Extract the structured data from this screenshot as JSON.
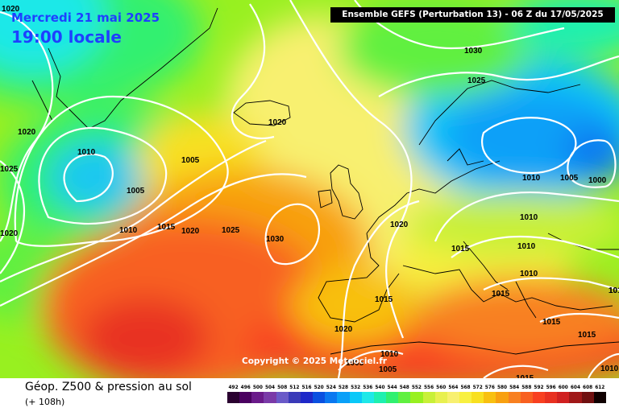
{
  "header": {
    "date": "Mercredi 21 mai 2025",
    "local_time": "19:00 locale",
    "model": "Ensemble GEFS  (Perturbation 13)  -  06 Z du 17/05/2025"
  },
  "copyright": "Copyright © 2025 Meteociel.fr",
  "footer": {
    "title": "Géop. Z500 & pression au sol",
    "subtitle": "(+ 108h)"
  },
  "isobar_labels": [
    {
      "text": "1020"
    },
    {
      "text": "1020"
    },
    {
      "text": "1025"
    },
    {
      "text": "1020"
    },
    {
      "text": "1010"
    },
    {
      "text": "1005"
    },
    {
      "text": "1005"
    },
    {
      "text": "1010"
    },
    {
      "text": "1015"
    },
    {
      "text": "1020"
    },
    {
      "text": "1025"
    },
    {
      "text": "1030"
    },
    {
      "text": "1020"
    },
    {
      "text": "1030"
    },
    {
      "text": "1025"
    },
    {
      "text": "1020"
    },
    {
      "text": "1015"
    },
    {
      "text": "1015"
    },
    {
      "text": "1010"
    },
    {
      "text": "1005"
    },
    {
      "text": "1000"
    },
    {
      "text": "1010"
    },
    {
      "text": "1010"
    },
    {
      "text": "1010"
    },
    {
      "text": "1015"
    },
    {
      "text": "1015"
    },
    {
      "text": "1015"
    },
    {
      "text": "1015"
    },
    {
      "text": "1020"
    },
    {
      "text": "1010"
    },
    {
      "text": "1005"
    },
    {
      "text": "1010"
    },
    {
      "text": "1005"
    },
    {
      "text": "1015"
    },
    {
      "text": "1010"
    }
  ],
  "scale": {
    "labels": [
      "492",
      "496",
      "500",
      "504",
      "508",
      "512",
      "516",
      "520",
      "524",
      "528",
      "532",
      "536",
      "540",
      "544",
      "548",
      "552",
      "556",
      "560",
      "564",
      "568",
      "572",
      "576",
      "580",
      "584",
      "588",
      "592",
      "596",
      "600",
      "604",
      "608",
      "612"
    ],
    "colors": [
      "#2a0030",
      "#4a0060",
      "#6a1a8a",
      "#7a3aa8",
      "#6a5ac8",
      "#3a3ab8",
      "#1e28c8",
      "#0a50e0",
      "#0a78f0",
      "#0aa0f8",
      "#0ac8f8",
      "#1ee8e8",
      "#1ef0b0",
      "#30f070",
      "#60f040",
      "#98f020",
      "#c8f038",
      "#e8f050",
      "#f8f070",
      "#f8f040",
      "#f8e020",
      "#f8c010",
      "#f8a010",
      "#f88020",
      "#f86020",
      "#f84020",
      "#e83020",
      "#d02020",
      "#a01818",
      "#701010",
      "#100000"
    ]
  },
  "colors": {
    "label_blue": "#1e40ff",
    "isobar": "#ffffff",
    "coast": "#000000"
  }
}
